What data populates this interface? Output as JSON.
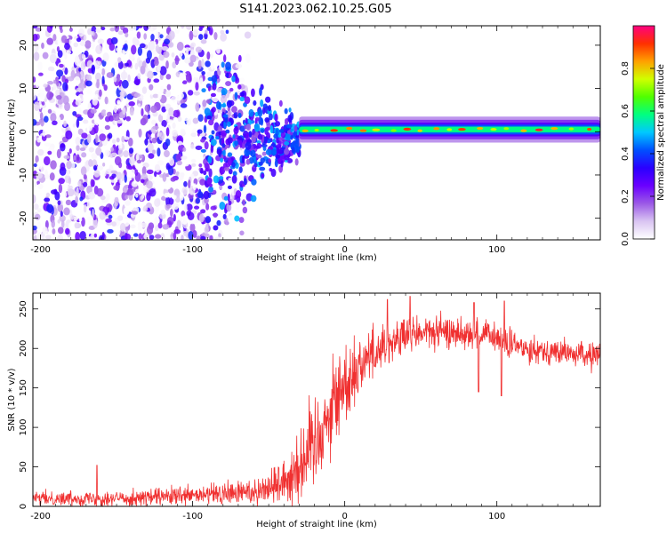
{
  "title": "S141.2023.062.10.25.G05",
  "chart_data": [
    {
      "type": "heatmap",
      "xlabel": "Height of straight line (km)",
      "ylabel": "Frequency (Hz)",
      "xlim": [
        -205,
        168
      ],
      "ylim": [
        -25,
        24.5
      ],
      "xticks": [
        -200,
        -100,
        0,
        100
      ],
      "yticks": [
        -20,
        -10,
        0,
        10,
        20
      ],
      "colorbar": {
        "label": "Normalized spectral amplitude",
        "range": [
          0,
          1
        ],
        "ticks": [
          0.0,
          0.2,
          0.4,
          0.6,
          0.8
        ],
        "colormap": [
          "#ffffff",
          "#d9c4f2",
          "#9b59e6",
          "#6a00ff",
          "#2a00ff",
          "#0050ff",
          "#00c8ff",
          "#00ff80",
          "#50ff00",
          "#d0ff00",
          "#ffa000",
          "#ff3000",
          "#ff0080"
        ]
      },
      "features": {
        "noise_region_x": [
          -205,
          -60
        ],
        "noise_density_peak_x": -150,
        "transition_x": [
          -95,
          -30
        ],
        "line_start_x": -30,
        "line_frequency": 0.5,
        "line_halfwidth": 1.5
      }
    },
    {
      "type": "line",
      "xlabel": "Height of straight line (km)",
      "ylabel": "SNR (10 * v/v)",
      "xlim": [
        -205,
        168
      ],
      "ylim": [
        0,
        270
      ],
      "xticks": [
        -200,
        -100,
        0,
        100
      ],
      "yticks": [
        0,
        50,
        100,
        150,
        200,
        250
      ],
      "series": [
        {
          "color": "#f03030",
          "x": [
            -205,
            -150,
            -100,
            -70,
            -50,
            -35,
            -25,
            -15,
            -5,
            10,
            20,
            30,
            40,
            50,
            60,
            80,
            90,
            100,
            110,
            120,
            130,
            140,
            150,
            168
          ],
          "y": [
            10,
            10,
            13,
            17,
            23,
            40,
            65,
            100,
            140,
            180,
            197,
            208,
            215,
            220,
            220,
            220,
            218,
            213,
            203,
            200,
            198,
            195,
            193,
            190
          ],
          "noise_amplitude": [
            4,
            5,
            6,
            8,
            10,
            20,
            28,
            32,
            28,
            20,
            15,
            14,
            12,
            12,
            10,
            10,
            10,
            10,
            10,
            8,
            8,
            8,
            8,
            8
          ],
          "dips": [
            {
              "x": 88,
              "y": 145
            },
            {
              "x": 103,
              "y": 140
            }
          ],
          "spikes": [
            {
              "x": 43,
              "y": 266
            },
            {
              "x": 28,
              "y": 262
            },
            {
              "x": 85,
              "y": 258
            },
            {
              "x": 105,
              "y": 260
            },
            {
              "x": -163,
              "y": 52
            }
          ]
        }
      ]
    }
  ]
}
